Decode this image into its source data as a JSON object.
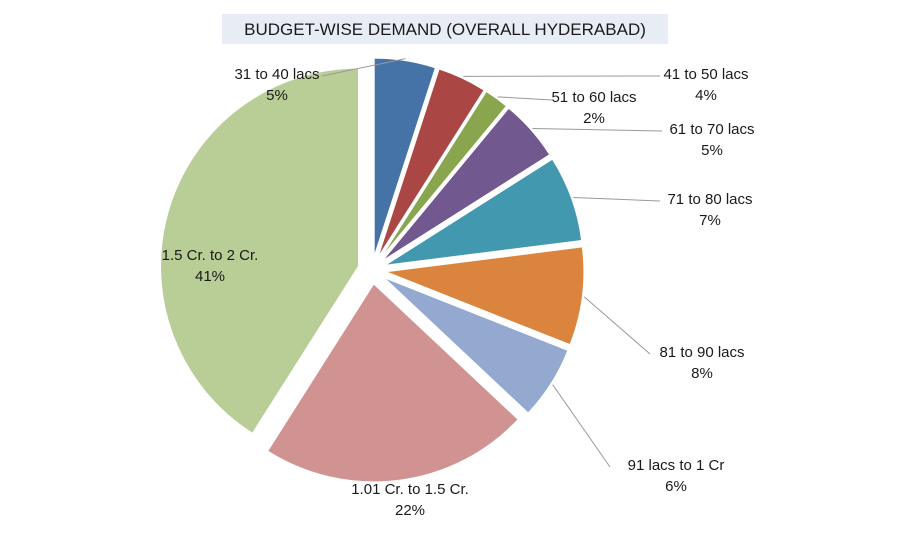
{
  "chart_data": {
    "type": "pie",
    "title": "BUDGET-WISE DEMAND (OVERALL HYDERABAD)",
    "exploded": true,
    "label_format": "category and percent",
    "slices": [
      {
        "label": "31 to 40 lacs",
        "value": 5,
        "percent_label": "5%",
        "color": "#4572a7"
      },
      {
        "label": "41 to 50 lacs",
        "value": 4,
        "percent_label": "4%",
        "color": "#aa4643"
      },
      {
        "label": "51 to 60 lacs",
        "value": 2,
        "percent_label": "2%",
        "color": "#89a54e"
      },
      {
        "label": "61 to 70 lacs",
        "value": 5,
        "percent_label": "5%",
        "color": "#71588f"
      },
      {
        "label": "71 to 80 lacs",
        "value": 7,
        "percent_label": "7%",
        "color": "#4198af"
      },
      {
        "label": "81 to 90 lacs",
        "value": 8,
        "percent_label": "8%",
        "color": "#db843d"
      },
      {
        "label": "91 lacs to 1 Cr",
        "value": 6,
        "percent_label": "6%",
        "color": "#93a9cf"
      },
      {
        "label": "1.01 Cr. to 1.5 Cr.",
        "value": 22,
        "percent_label": "22%",
        "color": "#d19392"
      },
      {
        "label": "1.5 Cr. to 2 Cr.",
        "value": 41,
        "percent_label": "41%",
        "color": "#b9cd96"
      }
    ]
  }
}
